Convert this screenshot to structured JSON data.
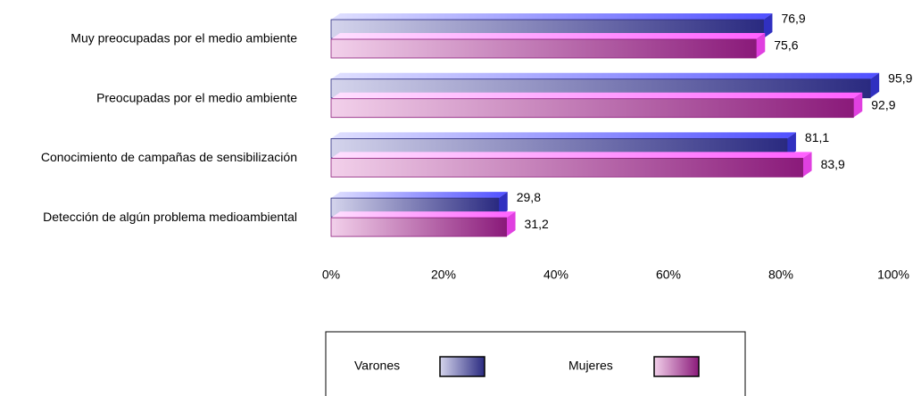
{
  "chart_data": {
    "type": "bar",
    "orientation": "horizontal",
    "categories": [
      "Muy preocupadas por el medio ambiente",
      "Preocupadas por el medio ambiente",
      "Conocimiento de campañas de sensibilización",
      "Detección de algún problema medioambiental"
    ],
    "series": [
      {
        "name": "Varones",
        "color": "#2a2a80",
        "values": [
          76.9,
          95.9,
          81.1,
          29.8
        ],
        "value_labels": [
          "76,9",
          "95,9",
          "81,1",
          "29,8"
        ]
      },
      {
        "name": "Mujeres",
        "color": "#8a1a7a",
        "values": [
          75.6,
          92.9,
          83.9,
          31.2
        ],
        "value_labels": [
          "75,6",
          "92,9",
          "83,9",
          "31,2"
        ]
      }
    ],
    "xlim": [
      0,
      100
    ],
    "xticks": [
      {
        "value": 0,
        "label": "0%"
      },
      {
        "value": 20,
        "label": "20%"
      },
      {
        "value": 40,
        "label": "40%"
      },
      {
        "value": 60,
        "label": "60%"
      },
      {
        "value": 80,
        "label": "80%"
      },
      {
        "value": 100,
        "label": "100%"
      }
    ],
    "legend": "bottom"
  }
}
